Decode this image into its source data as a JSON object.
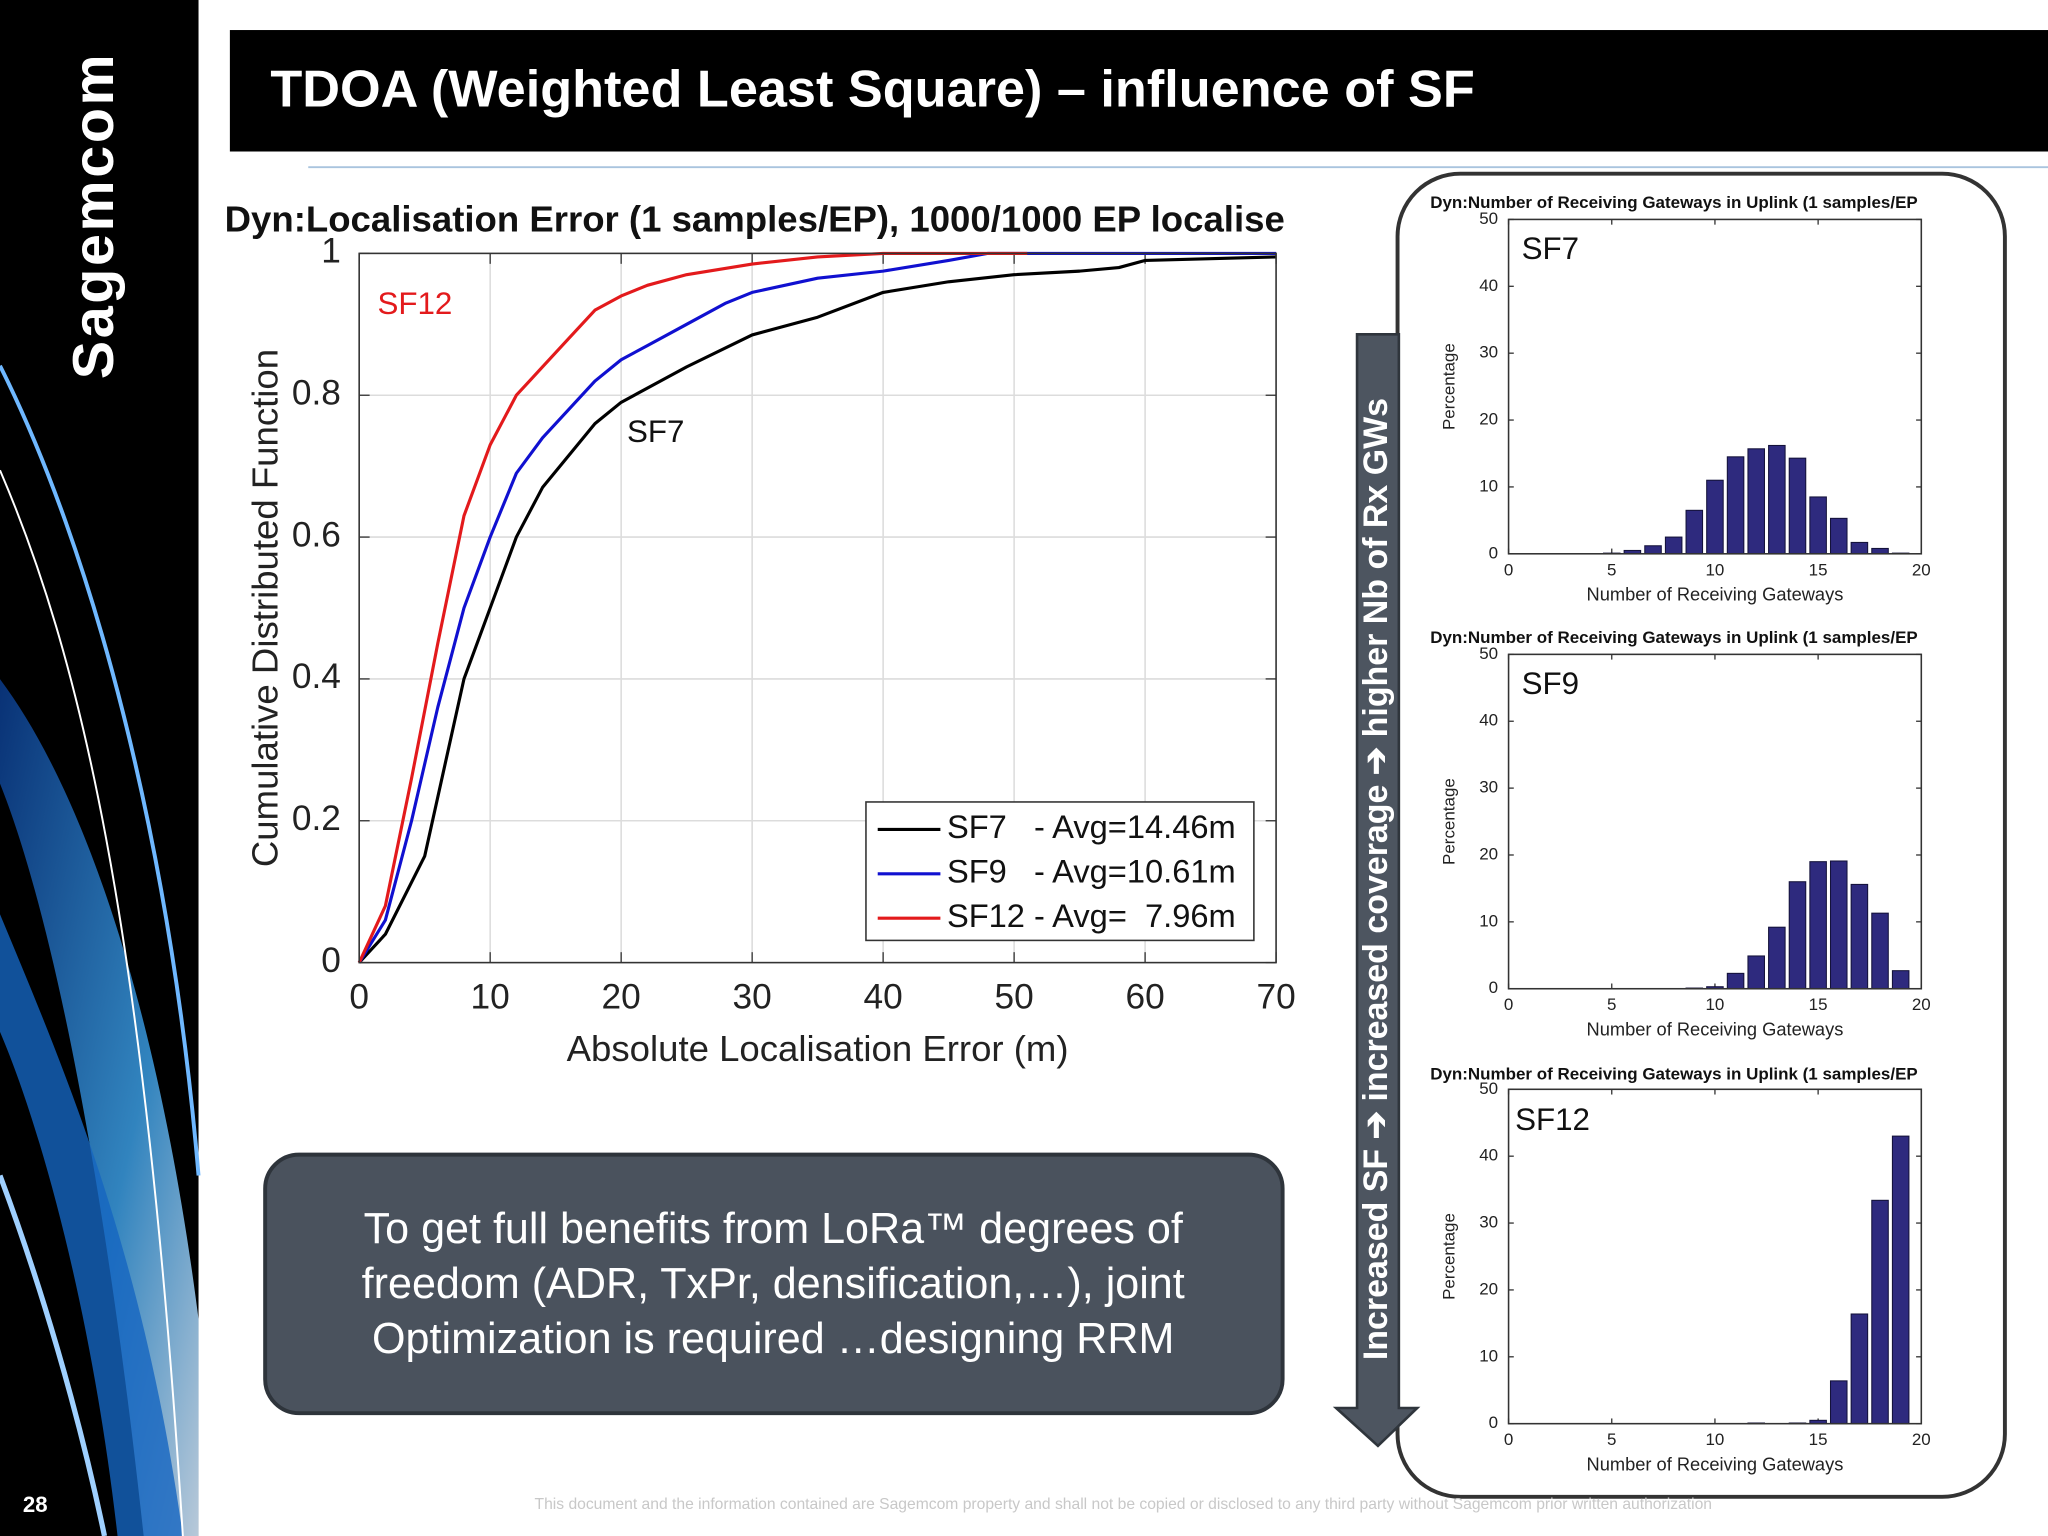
{
  "slide": {
    "logo": "Sagemcom",
    "page_number": "28",
    "title": "TDOA (Weighted Least Square) – influence of SF",
    "arrow_label": "Increased SF ➔ increased coverage ➔ higher Nb of Rx GWs",
    "note": [
      "To get full benefits from LoRa™ degrees of",
      "freedom (ADR, TxPr, densification,…), joint",
      "Optimization is required …designing RRM"
    ],
    "footer": "This document and the information contained are Sagemcom property and shall not be copied or disclosed to any third party without Sagemcom prior written authorization"
  },
  "chart_data": [
    {
      "type": "line",
      "title": "Dyn:Localisation Error (1 samples/EP), 1000/1000 EP localise",
      "x_label": "Absolute Localisation Error (m)",
      "y_label": "Cumulative Distributed Function",
      "xlim": [
        0,
        70
      ],
      "xticks": [
        0,
        10,
        20,
        30,
        40,
        50,
        60,
        70
      ],
      "ylim": [
        0,
        1
      ],
      "yticks": [
        0,
        0.2,
        0.4,
        0.6,
        0.8,
        1
      ],
      "grid": true,
      "legend": "lower right",
      "annotations": [
        {
          "text": "SF12",
          "color": "#e31a1c"
        },
        {
          "text": "SF7",
          "color": "#111111"
        }
      ],
      "series": [
        {
          "name": "SF7   - Avg=14.46m",
          "color": "#000000",
          "x": [
            0,
            2,
            5,
            8,
            10,
            12,
            14,
            18,
            20,
            25,
            30,
            35,
            40,
            45,
            50,
            55,
            58,
            60,
            70
          ],
          "values": [
            0,
            0.04,
            0.15,
            0.4,
            0.5,
            0.6,
            0.67,
            0.76,
            0.79,
            0.84,
            0.885,
            0.91,
            0.945,
            0.96,
            0.97,
            0.975,
            0.98,
            0.99,
            0.995
          ]
        },
        {
          "name": "SF9   - Avg=10.61m",
          "color": "#1010d0",
          "x": [
            0,
            2,
            4,
            6,
            8,
            10,
            12,
            14,
            16,
            18,
            20,
            22,
            25,
            28,
            30,
            35,
            40,
            45,
            48,
            70
          ],
          "values": [
            0,
            0.06,
            0.2,
            0.36,
            0.5,
            0.6,
            0.69,
            0.74,
            0.78,
            0.82,
            0.85,
            0.87,
            0.9,
            0.93,
            0.945,
            0.965,
            0.975,
            0.99,
            1,
            1
          ]
        },
        {
          "name": "SF12 - Avg=  7.96m",
          "color": "#e31a1c",
          "x": [
            0,
            2,
            4,
            6,
            8,
            10,
            12,
            14,
            16,
            18,
            20,
            22,
            25,
            30,
            35,
            40,
            51
          ],
          "values": [
            0,
            0.08,
            0.26,
            0.45,
            0.63,
            0.73,
            0.8,
            0.84,
            0.88,
            0.92,
            0.94,
            0.955,
            0.97,
            0.985,
            0.995,
            1,
            1
          ]
        }
      ]
    },
    {
      "type": "bar",
      "title": "Dyn:Number of Receiving Gateways in Uplink (1 samples/EP",
      "x_label": "Number of Receiving Gateways",
      "y_label": "Percentage",
      "annotations": [
        {
          "text": "SF7"
        }
      ],
      "xlim": [
        0,
        20
      ],
      "xticks": [
        0,
        5,
        10,
        15,
        20
      ],
      "ylim": [
        0,
        50
      ],
      "yticks": [
        0,
        10,
        20,
        30,
        40,
        50
      ],
      "color": "#2e2a7e",
      "x": [
        5,
        6,
        7,
        8,
        9,
        10,
        11,
        12,
        13,
        14,
        15,
        16,
        17,
        18,
        19
      ],
      "values": [
        0.1,
        0.5,
        1.2,
        2.5,
        6.5,
        11,
        14.5,
        15.7,
        16.2,
        14.3,
        8.5,
        5.3,
        1.7,
        0.8,
        0.1
      ]
    },
    {
      "type": "bar",
      "title": "Dyn:Number of Receiving Gateways in Uplink (1 samples/EP",
      "x_label": "Number of Receiving Gateways",
      "y_label": "Percentage",
      "annotations": [
        {
          "text": "SF9"
        }
      ],
      "xlim": [
        0,
        20
      ],
      "xticks": [
        0,
        5,
        10,
        15,
        20
      ],
      "ylim": [
        0,
        50
      ],
      "yticks": [
        0,
        10,
        20,
        30,
        40,
        50
      ],
      "color": "#2e2a7e",
      "x": [
        9,
        10,
        11,
        12,
        13,
        14,
        15,
        16,
        17,
        18,
        19
      ],
      "values": [
        0.1,
        0.3,
        2.3,
        4.9,
        9.2,
        16,
        19,
        19.1,
        15.6,
        11.3,
        2.7
      ]
    },
    {
      "type": "bar",
      "title": "Dyn:Number of Receiving Gateways in Uplink (1 samples/EP",
      "x_label": "Number of Receiving Gateways",
      "y_label": "Percentage",
      "annotations": [
        {
          "text": "SF12"
        }
      ],
      "xlim": [
        0,
        20
      ],
      "xticks": [
        0,
        5,
        10,
        15,
        20
      ],
      "ylim": [
        0,
        50
      ],
      "yticks": [
        0,
        10,
        20,
        30,
        40,
        50
      ],
      "color": "#2e2a7e",
      "x": [
        12,
        14,
        15,
        16,
        17,
        18,
        19
      ],
      "values": [
        0.1,
        0.1,
        0.5,
        6.4,
        16.4,
        33.4,
        43
      ]
    }
  ]
}
